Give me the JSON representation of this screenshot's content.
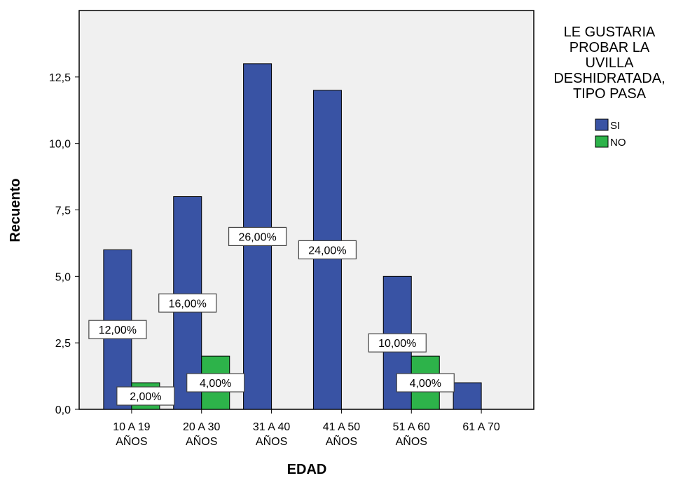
{
  "chart_data": {
    "type": "bar",
    "xlabel": "EDAD",
    "ylabel": "Recuento",
    "ylim": [
      0,
      15
    ],
    "yticks": [
      {
        "value": 0,
        "label": "0,0"
      },
      {
        "value": 2.5,
        "label": "2,5"
      },
      {
        "value": 5,
        "label": "5,0"
      },
      {
        "value": 7.5,
        "label": "7,5"
      },
      {
        "value": 10,
        "label": "10,0"
      },
      {
        "value": 12.5,
        "label": "12,5"
      }
    ],
    "categories": [
      {
        "line1": "10 A 19",
        "line2": "AÑOS"
      },
      {
        "line1": "20 A 30",
        "line2": "AÑOS"
      },
      {
        "line1": "31 A 40",
        "line2": "AÑOS"
      },
      {
        "line1": "41 A 50",
        "line2": "AÑOS"
      },
      {
        "line1": "51 A 60",
        "line2": "AÑOS"
      },
      {
        "line1": "61 A 70",
        "line2": ""
      }
    ],
    "series": [
      {
        "name": "SI",
        "color": "#3953a4",
        "values": [
          6,
          8,
          13,
          12,
          5,
          1
        ],
        "labels": [
          "12,00%",
          "16,00%",
          "26,00%",
          "24,00%",
          "10,00%",
          ""
        ]
      },
      {
        "name": "NO",
        "color": "#2db34a",
        "values": [
          1,
          2,
          0,
          0,
          2,
          0
        ],
        "labels": [
          "2,00%",
          "4,00%",
          "",
          "",
          "4,00%",
          ""
        ]
      }
    ],
    "legend": {
      "title_lines": [
        "LE GUSTARIA",
        "PROBAR LA",
        "UVILLA",
        "DESHIDRATADA,",
        "TIPO PASA"
      ],
      "placement": "right"
    },
    "plot_background": "#f0f0f0",
    "grid": false
  }
}
